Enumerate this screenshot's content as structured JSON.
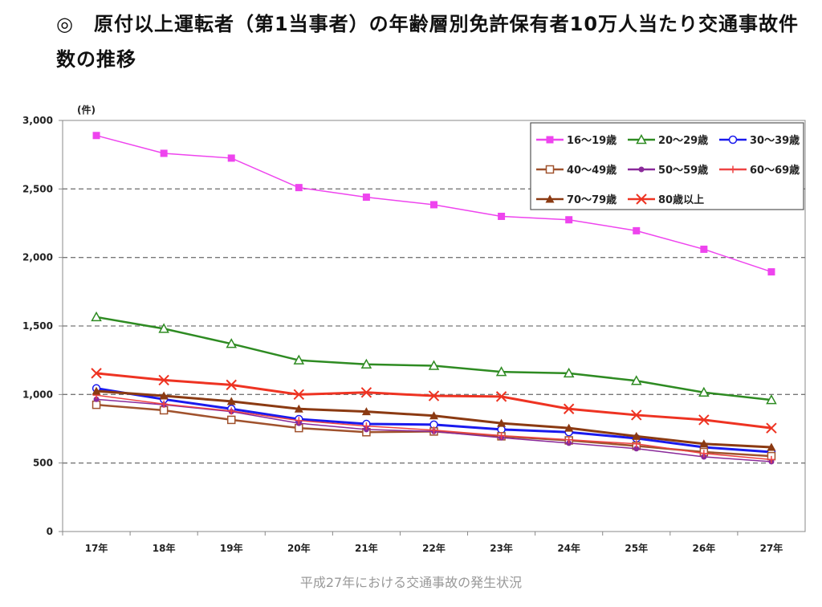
{
  "title": "◎　原付以上運転者（第1当事者）の年齢層別免許保有者10万人当たり交通事故件数の推移",
  "caption": "平成27年における交通事故の発生状況",
  "chart_data": {
    "type": "line",
    "title": "◎　原付以上運転者（第1当事者）の年齢層別免許保有者10万人当たり交通事故件数の推移",
    "ylabel": "(件)",
    "xlabel": "",
    "ylim": [
      0,
      3000
    ],
    "yticks": [
      0,
      500,
      1000,
      1500,
      2000,
      2500,
      3000
    ],
    "ytick_labels": [
      "0",
      "500",
      "1,000",
      "1,500",
      "2,000",
      "2,500",
      "3,000"
    ],
    "grid": "horizontal dashed",
    "legend_position": "top-right",
    "categories": [
      "17年",
      "18年",
      "19年",
      "20年",
      "21年",
      "22年",
      "23年",
      "24年",
      "25年",
      "26年",
      "27年"
    ],
    "series": [
      {
        "name": "16～19歳",
        "color": "#ee44ee",
        "marker": "square-filled",
        "values": [
          2890,
          2760,
          2725,
          2510,
          2440,
          2385,
          2300,
          2275,
          2195,
          2060,
          1895
        ]
      },
      {
        "name": "20～29歳",
        "color": "#2e8b22",
        "marker": "triangle-open",
        "values": [
          1565,
          1480,
          1370,
          1250,
          1220,
          1210,
          1165,
          1155,
          1100,
          1015,
          960
        ]
      },
      {
        "name": "30～39歳",
        "color": "#1a1aee",
        "marker": "circle-open",
        "values": [
          1045,
          965,
          895,
          820,
          785,
          780,
          745,
          725,
          680,
          615,
          580
        ]
      },
      {
        "name": "40～49歳",
        "color": "#a0522d",
        "marker": "square-open",
        "values": [
          925,
          885,
          815,
          755,
          725,
          730,
          695,
          665,
          625,
          580,
          550
        ]
      },
      {
        "name": "50～59歳",
        "color": "#8a2a9a",
        "marker": "circle-filled",
        "values": [
          965,
          925,
          875,
          790,
          745,
          730,
          685,
          645,
          605,
          545,
          510
        ]
      },
      {
        "name": "60～69歳",
        "color": "#ee4444",
        "marker": "plus",
        "values": [
          995,
          930,
          880,
          810,
          770,
          740,
          700,
          670,
          640,
          570,
          525
        ]
      },
      {
        "name": "70～79歳",
        "color": "#8b3a12",
        "marker": "triangle-filled",
        "values": [
          1025,
          990,
          950,
          895,
          875,
          845,
          790,
          755,
          695,
          640,
          615
        ]
      },
      {
        "name": "80歳以上",
        "color": "#ee3322",
        "marker": "x",
        "values": [
          1155,
          1105,
          1070,
          1000,
          1015,
          990,
          985,
          895,
          850,
          815,
          755
        ]
      }
    ]
  }
}
